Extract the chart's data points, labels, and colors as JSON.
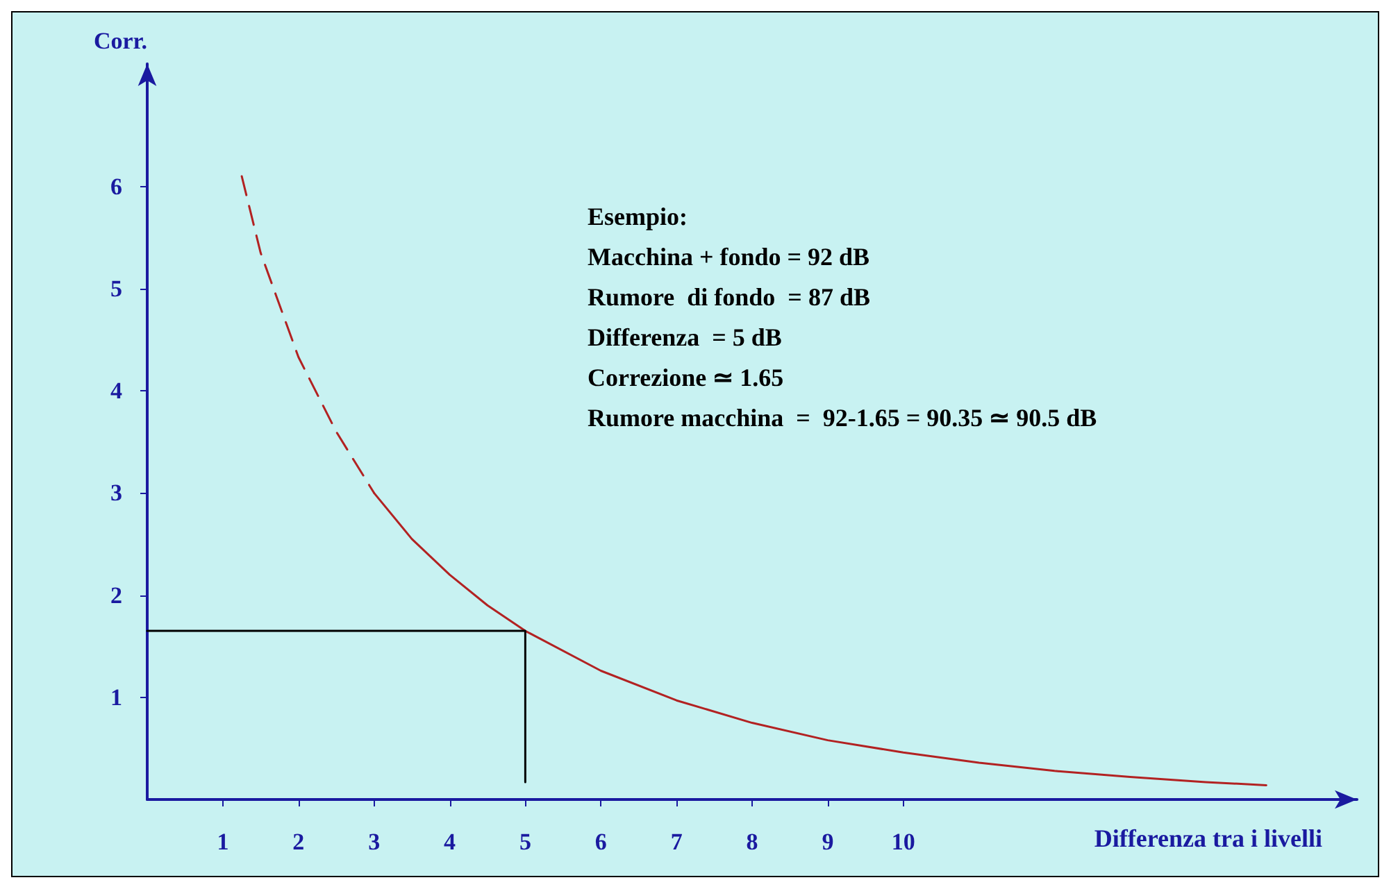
{
  "chart_data": {
    "type": "line",
    "xlabel": "Differenza tra i livelli",
    "ylabel": "Corr.",
    "annotations": [
      "Esempio:",
      "Macchina + fondo = 92 dB",
      "Rumore  di fondo  = 87 dB",
      "Differenza  = 5 dB",
      "Correzione ≃ 1.65",
      "Rumore macchina  =  92-1.65 = 90.35 ≃ 90.5 dB"
    ],
    "series": [
      {
        "color": "#b22222",
        "line_style": "dashed",
        "x": [
          1.25,
          1.5,
          2,
          2.5,
          3
        ],
        "values": [
          6.1,
          5.35,
          4.33,
          3.6,
          3.0
        ]
      },
      {
        "color": "#b22222",
        "line_style": "solid",
        "x": [
          3,
          3.5,
          4,
          4.5,
          5,
          6,
          7,
          8,
          9,
          10,
          11,
          12,
          13,
          14,
          14.8
        ],
        "values": [
          3.0,
          2.55,
          2.2,
          1.9,
          1.65,
          1.26,
          0.97,
          0.75,
          0.58,
          0.46,
          0.36,
          0.28,
          0.22,
          0.17,
          0.14
        ]
      },
      {
        "color": "#000000",
        "line_style": "solid",
        "x": [
          0,
          5,
          5
        ],
        "values": [
          1.65,
          1.65,
          0.17
        ]
      }
    ],
    "marker": "none",
    "xlim": [
      0,
      16
    ],
    "ylim": [
      0,
      7.2
    ],
    "xticks": [
      1,
      2,
      3,
      4,
      5,
      6,
      7,
      8,
      9,
      10
    ],
    "yticks": [
      1,
      2,
      3,
      4,
      5,
      6
    ]
  }
}
